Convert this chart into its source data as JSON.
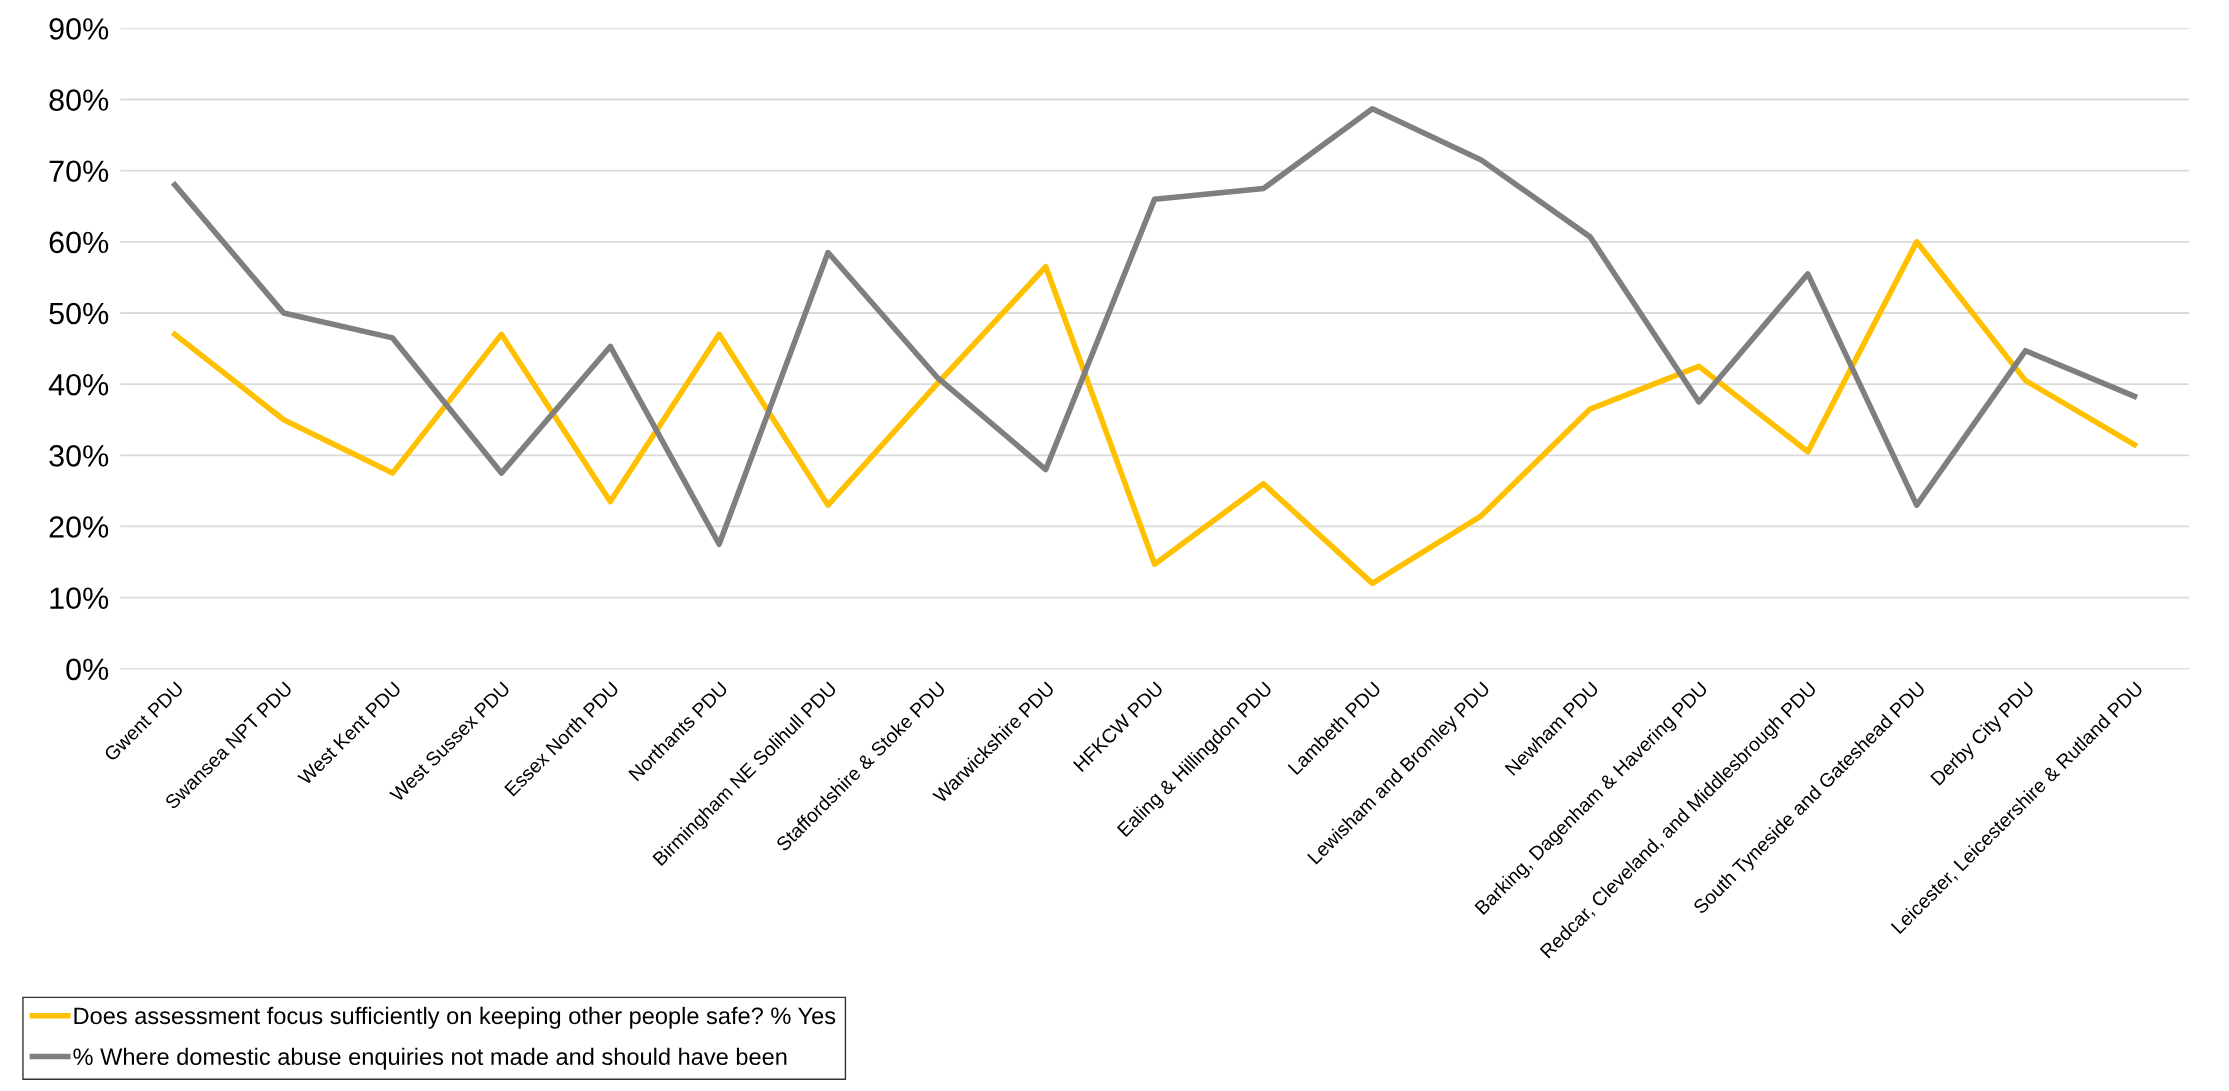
{
  "chart_data": {
    "type": "line",
    "categories": [
      "Gwent PDU",
      "Swansea NPT PDU",
      "West Kent PDU",
      "West Sussex PDU",
      "Essex North PDU",
      "Northants PDU",
      "Birmingham NE Solihull PDU",
      "Staffordshire & Stoke PDU",
      "Warwickshire PDU",
      "HFKCW PDU",
      "Ealing & Hillingdon PDU",
      "Lambeth PDU",
      "Lewisham and Bromley PDU",
      "Newham PDU",
      "Barking, Dagenham & Havering PDU",
      "Redcar, Cleveland, and Middlesbrough PDU",
      "South Tyneside and Gateshead PDU",
      "Derby City PDU",
      "Leicester, Leicestershire & Rutland PDU"
    ],
    "series": [
      {
        "name": "Does assessment focus sufficiently on keeping other people safe? % Yes",
        "color": "#ffc000",
        "values": [
          47,
          35,
          27.5,
          47,
          23.5,
          47,
          23,
          40,
          56.5,
          14.7,
          26,
          12,
          21.5,
          36.5,
          42.5,
          30.5,
          60,
          40.5,
          31.5
        ]
      },
      {
        "name": "% Where domestic abuse enquiries not made and should have been",
        "color": "#7f7f7f",
        "values": [
          68,
          50,
          46.5,
          27.5,
          45.3,
          17.5,
          58.5,
          41,
          28,
          66,
          67.5,
          78.7,
          71.5,
          60.7,
          37.5,
          55.5,
          23,
          44.7,
          38.3
        ]
      }
    ],
    "ylim": [
      0,
      90
    ],
    "yticks": [
      {
        "value": 0,
        "label": "0%"
      },
      {
        "value": 10,
        "label": "10%"
      },
      {
        "value": 20,
        "label": "20%"
      },
      {
        "value": 30,
        "label": "30%"
      },
      {
        "value": 40,
        "label": "40%"
      },
      {
        "value": 50,
        "label": "50%"
      },
      {
        "value": 60,
        "label": "60%"
      },
      {
        "value": 70,
        "label": "70%"
      },
      {
        "value": 80,
        "label": "80%"
      },
      {
        "value": 90,
        "label": "90%"
      }
    ],
    "grid": "y",
    "legend": "bottom left",
    "marker": "none",
    "line_style": "solid"
  }
}
